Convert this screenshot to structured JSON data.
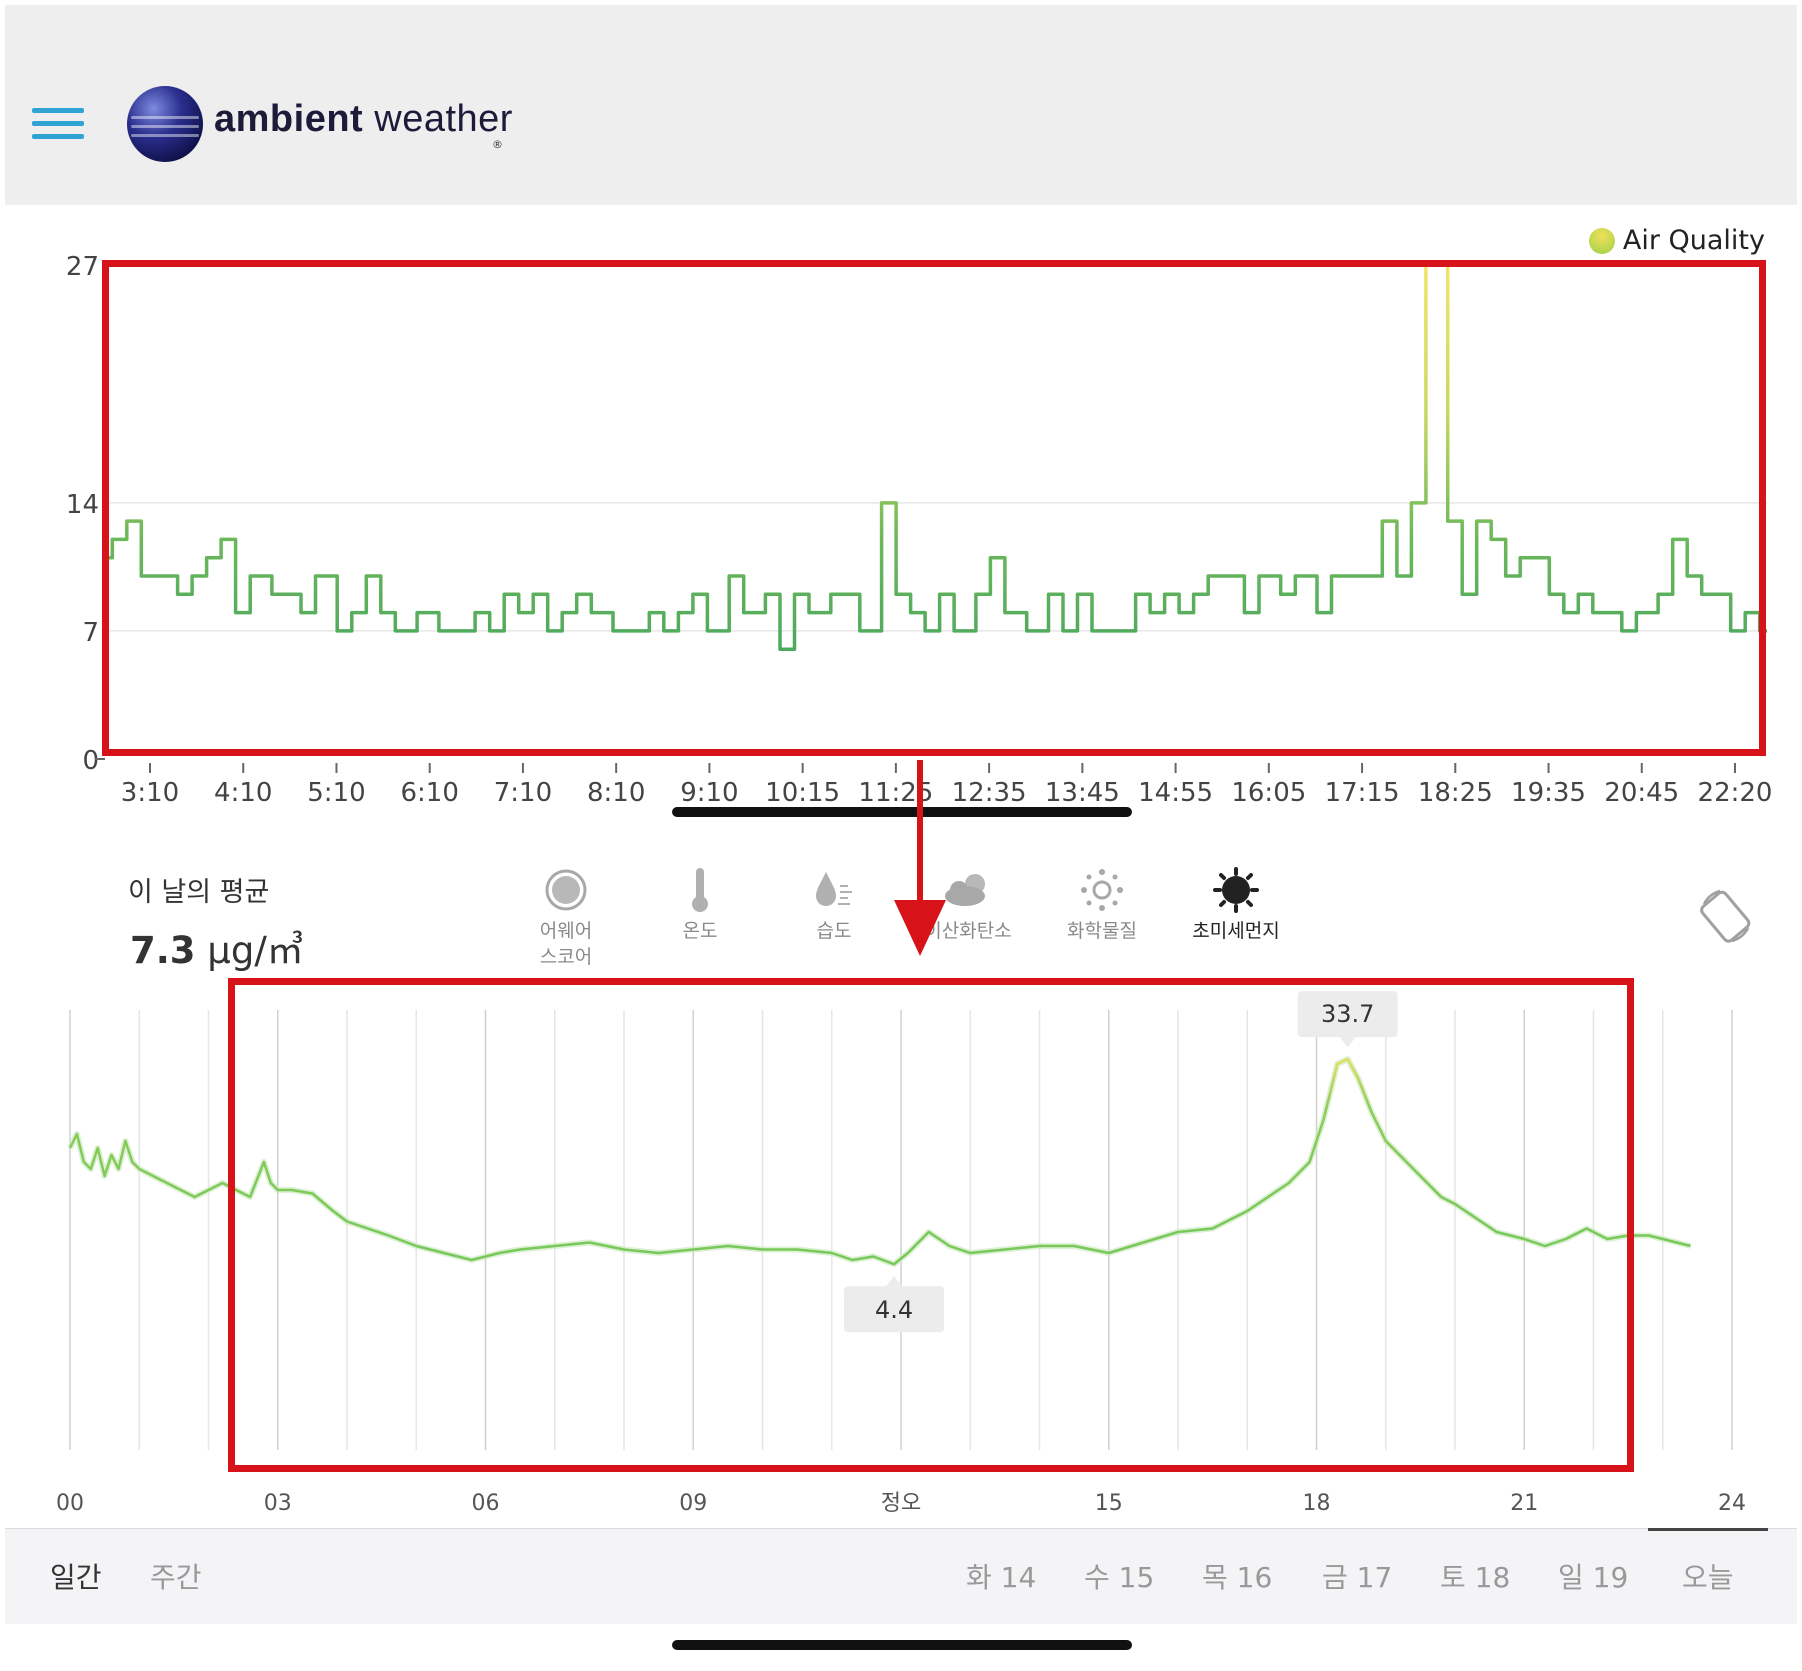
{
  "header": {
    "logo_bold": "ambient",
    "logo_light": " weather",
    "logo_mark": "®"
  },
  "top_chart": {
    "legend": "Air Quality",
    "chart_data": {
      "type": "line",
      "series": [
        {
          "name": "Air Quality",
          "values": [
            11,
            12,
            12,
            13,
            13,
            10,
            10,
            10,
            10,
            10,
            9,
            9,
            10,
            10,
            11,
            11,
            12,
            12,
            8,
            8,
            10,
            10,
            10,
            9,
            9,
            9,
            9,
            8,
            8,
            10,
            10,
            10,
            7,
            7,
            8,
            8,
            10,
            10,
            8,
            8,
            7,
            7,
            7,
            8,
            8,
            8,
            7,
            7,
            7,
            7,
            7,
            8,
            8,
            7,
            7,
            9,
            9,
            8,
            8,
            9,
            9,
            7,
            7,
            8,
            8,
            9,
            9,
            8,
            8,
            8,
            7,
            7,
            7,
            7,
            7,
            8,
            8,
            7,
            7,
            8,
            8,
            9,
            9,
            7,
            7,
            7,
            10,
            10,
            8,
            8,
            8,
            9,
            9,
            6,
            6,
            9,
            9,
            8,
            8,
            8,
            9,
            9,
            9,
            9,
            7,
            7,
            7,
            14,
            14,
            9,
            9,
            8,
            8,
            7,
            7,
            9,
            9,
            7,
            7,
            7,
            9,
            9,
            11,
            11,
            8,
            8,
            8,
            7,
            7,
            7,
            9,
            9,
            7,
            7,
            9,
            9,
            7,
            7,
            7,
            7,
            7,
            7,
            9,
            9,
            8,
            8,
            9,
            9,
            8,
            8,
            9,
            9,
            10,
            10,
            10,
            10,
            10,
            8,
            8,
            10,
            10,
            10,
            9,
            9,
            10,
            10,
            10,
            8,
            8,
            10,
            10,
            10,
            10,
            10,
            10,
            10,
            13,
            13,
            10,
            10,
            14,
            14,
            27,
            27,
            27,
            13,
            13,
            9,
            9,
            13,
            13,
            12,
            12,
            10,
            10,
            11,
            11,
            11,
            11,
            9,
            9,
            8,
            8,
            9,
            9,
            8,
            8,
            8,
            8,
            7,
            7,
            8,
            8,
            8,
            9,
            9,
            12,
            12,
            10,
            10,
            9,
            9,
            9,
            9,
            7,
            7,
            8,
            8,
            7
          ]
        }
      ],
      "x_tick_labels": [
        "3:10",
        "4:10",
        "5:10",
        "6:10",
        "7:10",
        "8:10",
        "9:10",
        "10:15",
        "11:25",
        "12:35",
        "13:45",
        "14:55",
        "16:05",
        "17:15",
        "18:25",
        "19:35",
        "20:45",
        "22:20"
      ],
      "y_tick_labels": [
        "0",
        "7",
        "14",
        "27"
      ],
      "ylim": [
        0,
        27
      ],
      "grid": "horizontal",
      "legend_position": "top-right",
      "colors": {
        "low": "#2e9a62",
        "high": "#f0e56a"
      }
    }
  },
  "avg": {
    "label": "이 날의 평균",
    "value_bold": "7.3",
    "value_unit": " μg/㎥"
  },
  "metrics": [
    {
      "label": "어웨어\n스코어",
      "icon": "awair-score-icon"
    },
    {
      "label": "온도",
      "icon": "thermometer-icon"
    },
    {
      "label": "습도",
      "icon": "humidity-drop-icon"
    },
    {
      "label": "이산화탄소",
      "icon": "cloud-co2-icon"
    },
    {
      "label": "화학물질",
      "icon": "chemical-icon"
    },
    {
      "label": "초미세먼지",
      "icon": "pm25-icon",
      "active": true
    }
  ],
  "bottom_chart": {
    "chart_data": {
      "type": "line",
      "x_tick_labels": [
        "00",
        "03",
        "06",
        "09",
        "정오",
        "15",
        "18",
        "21",
        "24"
      ],
      "xlim": [
        0,
        24
      ],
      "ylim": [
        0,
        40
      ],
      "max_label": "33.7",
      "min_label": "4.4",
      "max_point": {
        "x": 18.45,
        "y": 33.7
      },
      "min_point": {
        "x": 11.9,
        "y": 4.4
      },
      "series": [
        {
          "x": [
            0,
            0.1,
            0.2,
            0.3,
            0.4,
            0.5,
            0.6,
            0.7,
            0.8,
            0.9,
            1.0,
            1.2,
            1.4,
            1.6,
            1.8,
            2.0,
            2.2,
            2.4,
            2.6,
            2.8,
            2.9,
            3.0,
            3.2,
            3.5,
            3.8,
            4.0,
            4.3,
            4.6,
            5.0,
            5.4,
            5.8,
            6.0,
            6.2,
            6.5,
            7.0,
            7.5,
            8.0,
            8.5,
            9.0,
            9.5,
            10.0,
            10.5,
            11.0,
            11.3,
            11.6,
            11.9,
            12.1,
            12.4,
            12.7,
            13.0,
            13.5,
            14.0,
            14.5,
            15.0,
            15.5,
            16.0,
            16.5,
            17.0,
            17.3,
            17.6,
            17.9,
            18.1,
            18.3,
            18.45,
            18.6,
            18.8,
            19.0,
            19.2,
            19.4,
            19.6,
            19.8,
            20.0,
            20.3,
            20.6,
            21.0,
            21.3,
            21.6,
            21.9,
            22.2,
            22.5,
            22.8,
            23.0,
            23.2,
            23.4
          ],
          "y": [
            21,
            23,
            19,
            18,
            21,
            17,
            20,
            18,
            22,
            19,
            18,
            17,
            16,
            15,
            14,
            15,
            16,
            15,
            14,
            19,
            16,
            15,
            15,
            14.5,
            12,
            10.5,
            9.5,
            8.5,
            7,
            6,
            5,
            5.5,
            6,
            6.5,
            7,
            7.5,
            6.5,
            6,
            6.5,
            7,
            6.5,
            6.5,
            6,
            5,
            5.5,
            4.4,
            6,
            9,
            7,
            6,
            6.5,
            7,
            7,
            6,
            7.5,
            9,
            9.5,
            12,
            14,
            16,
            19,
            25,
            33,
            33.7,
            31,
            26,
            22,
            20,
            18,
            16,
            14,
            13,
            11,
            9,
            8,
            7,
            8,
            9.5,
            8,
            8.5,
            8.5,
            8,
            7.5,
            7
          ]
        }
      ],
      "grid": "vertical",
      "colors": {
        "line": "#78c85a",
        "peak": "#e8e05a"
      }
    }
  },
  "tabs": {
    "daily": "일간",
    "weekly": "주간",
    "days": [
      "화 14",
      "수 15",
      "목 16",
      "금 17",
      "토 18",
      "일 19",
      "오늘"
    ]
  }
}
